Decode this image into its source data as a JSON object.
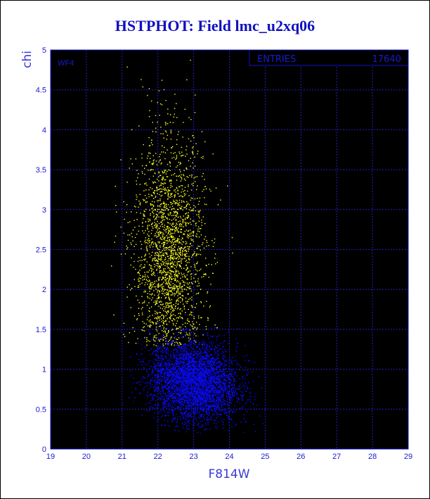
{
  "title": "HSTPHOT: Field lmc_u2xq06",
  "panel_label": "WF4",
  "stats_box": {
    "label": "ENTRIES",
    "value": "17640"
  },
  "colors": {
    "frame": "#1010d0",
    "grid": "#2020c0",
    "text": "#1a1ad0",
    "yellow": "#ffff20",
    "blue": "#0a0ae8"
  },
  "chart_data": {
    "type": "scatter",
    "title": "HSTPHOT: Field lmc_u2xq06",
    "xlabel": "F814W",
    "ylabel": "chi",
    "xlim": [
      19,
      29
    ],
    "ylim": [
      0,
      5
    ],
    "x_ticks": [
      19,
      20,
      21,
      22,
      23,
      24,
      25,
      26,
      27,
      28,
      29
    ],
    "y_ticks": [
      0,
      0.5,
      1,
      1.5,
      2,
      2.5,
      3,
      3.5,
      4,
      4.5,
      5
    ],
    "y_tick_labels": [
      "0",
      "0.5",
      "1",
      "1.5",
      "2",
      "2.5",
      "3",
      "3.5",
      "4",
      "4.5",
      "5"
    ],
    "grid": true,
    "entries": 17640,
    "series": [
      {
        "color": "#ffff20",
        "x_center": 22.3,
        "x_spread": 0.9,
        "y_center": 2.4,
        "y_spread": 0.75,
        "y_min": 1.3,
        "y_max": 5.0
      },
      {
        "color": "#0a0ae8",
        "x_center": 23.0,
        "x_spread": 1.1,
        "y_center": 0.95,
        "y_spread": 0.25,
        "y_min": 0.2,
        "y_max": 1.7
      }
    ]
  }
}
